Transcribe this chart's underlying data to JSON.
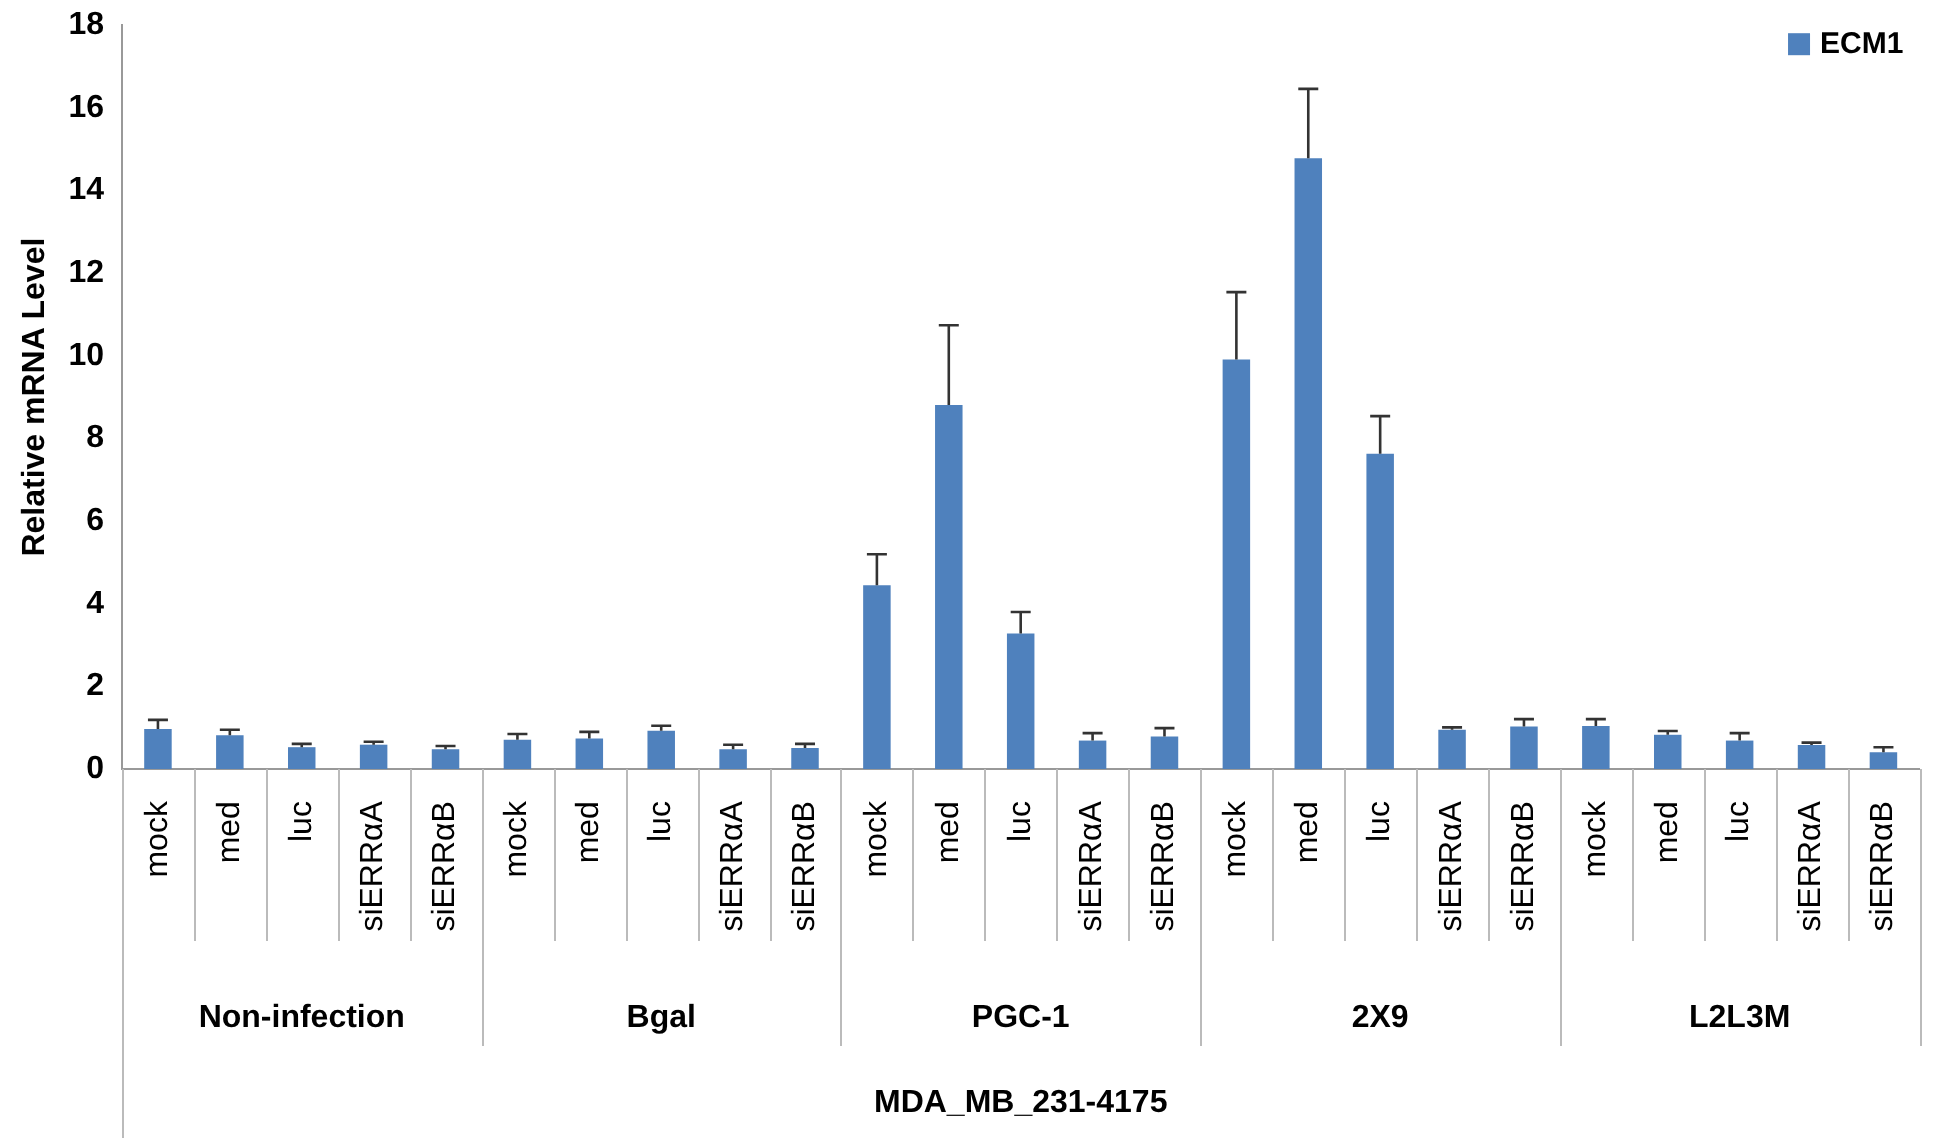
{
  "chart_data": {
    "type": "bar",
    "xlabel": "MDA_MB_231-4175",
    "ylabel": "Relative mRNA Level",
    "categories": [
      "mock",
      "med",
      "luc",
      "siERRαA",
      "siERRαB",
      "mock",
      "med",
      "luc",
      "siERRαA",
      "siERRαB",
      "mock",
      "med",
      "luc",
      "siERRαA",
      "siERRαB",
      "mock",
      "med",
      "luc",
      "siERRαA",
      "siERRαB",
      "mock",
      "med",
      "luc",
      "siERRαA",
      "siERRαB"
    ],
    "annotations": [
      "Non-infection",
      "Bgal",
      "PGC-1",
      "2X9",
      "L2L3M"
    ],
    "series": [
      {
        "name": "ECM1",
        "color": "#4f81bd",
        "values": [
          0.97,
          0.82,
          0.53,
          0.59,
          0.48,
          0.71,
          0.74,
          0.93,
          0.48,
          0.51,
          4.45,
          8.81,
          3.28,
          0.69,
          0.79,
          9.91,
          14.78,
          7.63,
          0.95,
          1.03,
          1.04,
          0.83,
          0.69,
          0.58,
          0.41
        ],
        "errors": [
          [
            0.97,
            1.19
          ],
          [
            0.82,
            0.95
          ],
          [
            0.53,
            0.61
          ],
          [
            0.59,
            0.66
          ],
          [
            0.48,
            0.56
          ],
          [
            0.71,
            0.85
          ],
          [
            0.74,
            0.9
          ],
          [
            0.93,
            1.05
          ],
          [
            0.48,
            0.59
          ],
          [
            0.51,
            0.61
          ],
          [
            4.45,
            5.2
          ],
          [
            8.81,
            10.74
          ],
          [
            3.28,
            3.8
          ],
          [
            0.69,
            0.87
          ],
          [
            0.79,
            0.99
          ],
          [
            9.91,
            11.54
          ],
          [
            14.78,
            16.46
          ],
          [
            7.63,
            8.54
          ],
          [
            0.95,
            1.01
          ],
          [
            1.03,
            1.21
          ],
          [
            1.04,
            1.21
          ],
          [
            0.83,
            0.92
          ],
          [
            0.69,
            0.87
          ],
          [
            0.58,
            0.64
          ],
          [
            0.41,
            0.53
          ]
        ]
      }
    ],
    "ylim": [
      0,
      18
    ],
    "yticks": [
      0,
      2,
      4,
      6,
      8,
      10,
      12,
      14,
      16,
      18
    ],
    "grid": false,
    "legend": "top right"
  }
}
